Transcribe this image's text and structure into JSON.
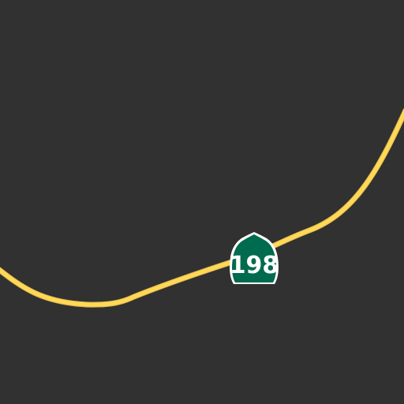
{
  "map": {
    "background_color": "#313131",
    "road_color": "#ffd858",
    "road_casing_color": "#e9c24d",
    "shield": {
      "icon": "california-state-route-shield-icon",
      "label": "198",
      "fill_color": "#006b4f",
      "text_color": "#ffffff",
      "border_color": "#ffffff"
    }
  }
}
